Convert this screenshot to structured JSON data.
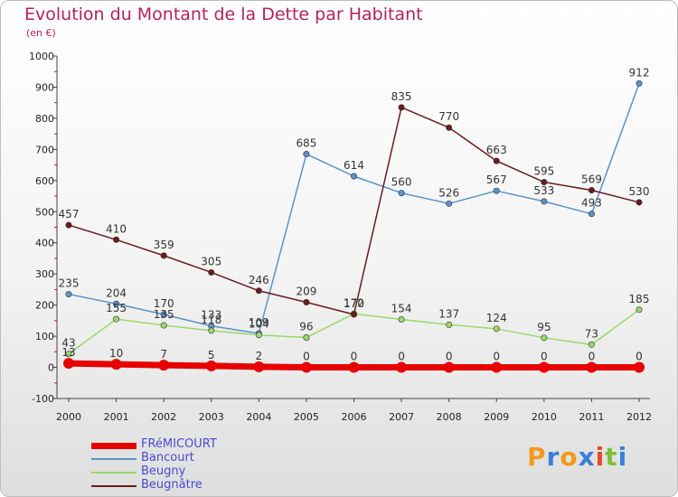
{
  "title": "Evolution du Montant de la Dette par Habitant",
  "unit_label": "(en €)",
  "brand": {
    "letters": [
      "P",
      "r",
      "o",
      "x",
      "i",
      "t",
      "i"
    ],
    "colors": [
      "#f39a1e",
      "#3a7fd6",
      "#f39a1e",
      "#3a7fd6",
      "#e44a2a",
      "#7cbf3a",
      "#3a7fd6"
    ]
  },
  "chart_data": {
    "type": "line",
    "x": [
      "2000",
      "2001",
      "2002",
      "2003",
      "2004",
      "2005",
      "2006",
      "2007",
      "2008",
      "2009",
      "2010",
      "2011",
      "2012"
    ],
    "ylim": [
      -100,
      1000
    ],
    "yticks": [
      -100,
      0,
      100,
      200,
      300,
      400,
      500,
      600,
      700,
      800,
      900,
      1000
    ],
    "grid": false,
    "legend_position": "bottom-left",
    "series": [
      {
        "name": "Bancourt",
        "color": "#5a93c8",
        "values": [
          235,
          204,
          170,
          133,
          109,
          685,
          614,
          560,
          526,
          567,
          533,
          493,
          912
        ]
      },
      {
        "name": "Beugny",
        "color": "#9ad86a",
        "values": [
          43,
          155,
          135,
          118,
          104,
          96,
          172,
          154,
          137,
          124,
          95,
          73,
          185
        ]
      },
      {
        "name": "Beugnâtre",
        "color": "#6a1c1c",
        "values": [
          457,
          410,
          359,
          305,
          246,
          209,
          170,
          835,
          770,
          663,
          595,
          569,
          530
        ]
      },
      {
        "name": "FRéMICOURT",
        "color": "#e60000",
        "values": [
          13,
          10,
          7,
          5,
          2,
          0,
          0,
          0,
          0,
          0,
          0,
          0,
          0
        ]
      }
    ]
  }
}
